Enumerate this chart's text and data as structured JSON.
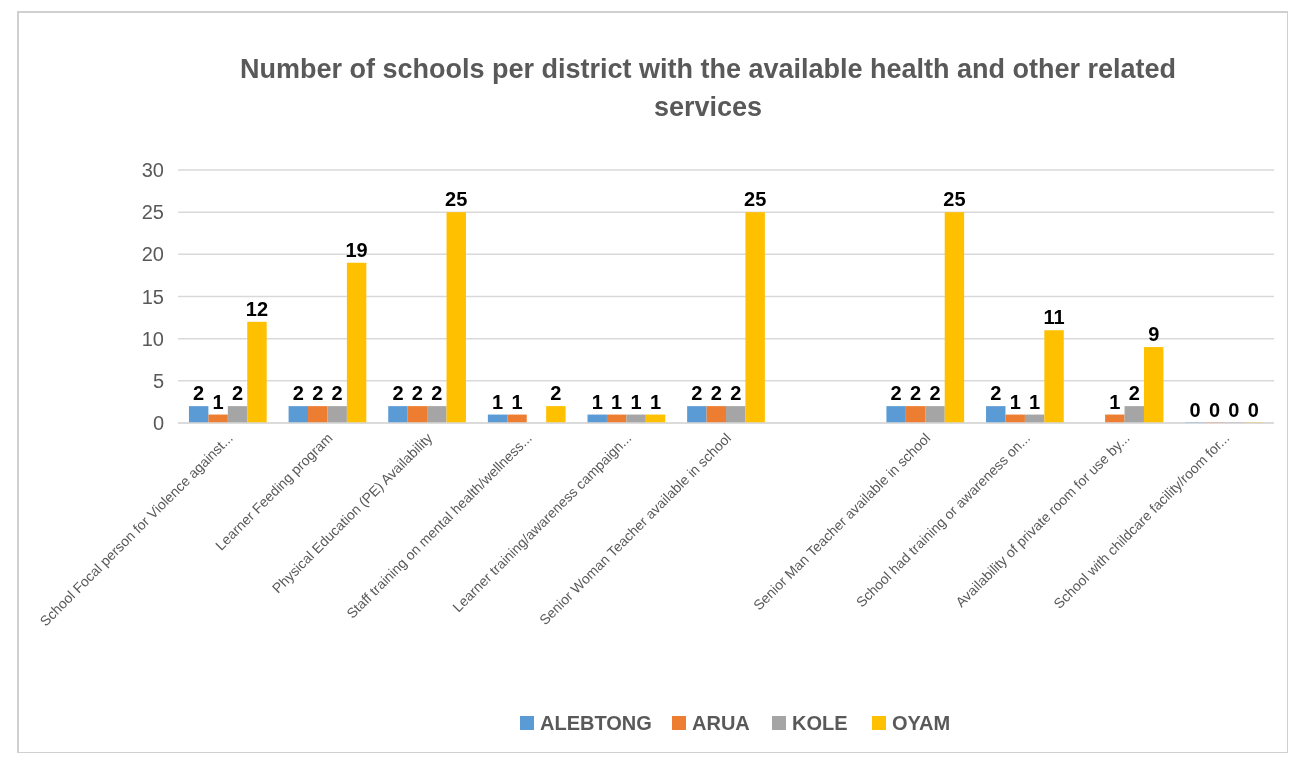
{
  "chart_data": {
    "type": "bar",
    "title": "Number of schools per district with the available health and other related services",
    "categories": [
      "School Focal person for Violence against...",
      "Learner Feeding program",
      "Physical Education (PE) Availability",
      "Staff training on mental health/wellness...",
      "Learner training/awareness  campaign...",
      "Senior Woman Teacher available in school",
      null,
      "Senior Man Teacher available in school",
      "School had training or awareness on...",
      "Availability of private room for use by...",
      "School with childcare facility/room for..."
    ],
    "series": [
      {
        "name": "ALEBTONG",
        "color": "#5b9bd5",
        "values": [
          2,
          2,
          2,
          1,
          1,
          2,
          null,
          2,
          2,
          null,
          0
        ]
      },
      {
        "name": "ARUA",
        "color": "#ed7d31",
        "values": [
          1,
          2,
          2,
          1,
          1,
          2,
          null,
          2,
          1,
          1,
          0
        ]
      },
      {
        "name": "KOLE",
        "color": "#a5a5a5",
        "values": [
          2,
          2,
          2,
          null,
          1,
          2,
          null,
          2,
          1,
          2,
          0
        ]
      },
      {
        "name": "OYAM",
        "color": "#ffc000",
        "values": [
          12,
          19,
          25,
          2,
          1,
          25,
          null,
          25,
          11,
          9,
          0
        ]
      }
    ],
    "ylim": [
      0,
      30
    ],
    "yticks": [
      0,
      5,
      10,
      15,
      20,
      25,
      30
    ],
    "grid": "y",
    "legend": "bottom",
    "data_labels": true
  }
}
